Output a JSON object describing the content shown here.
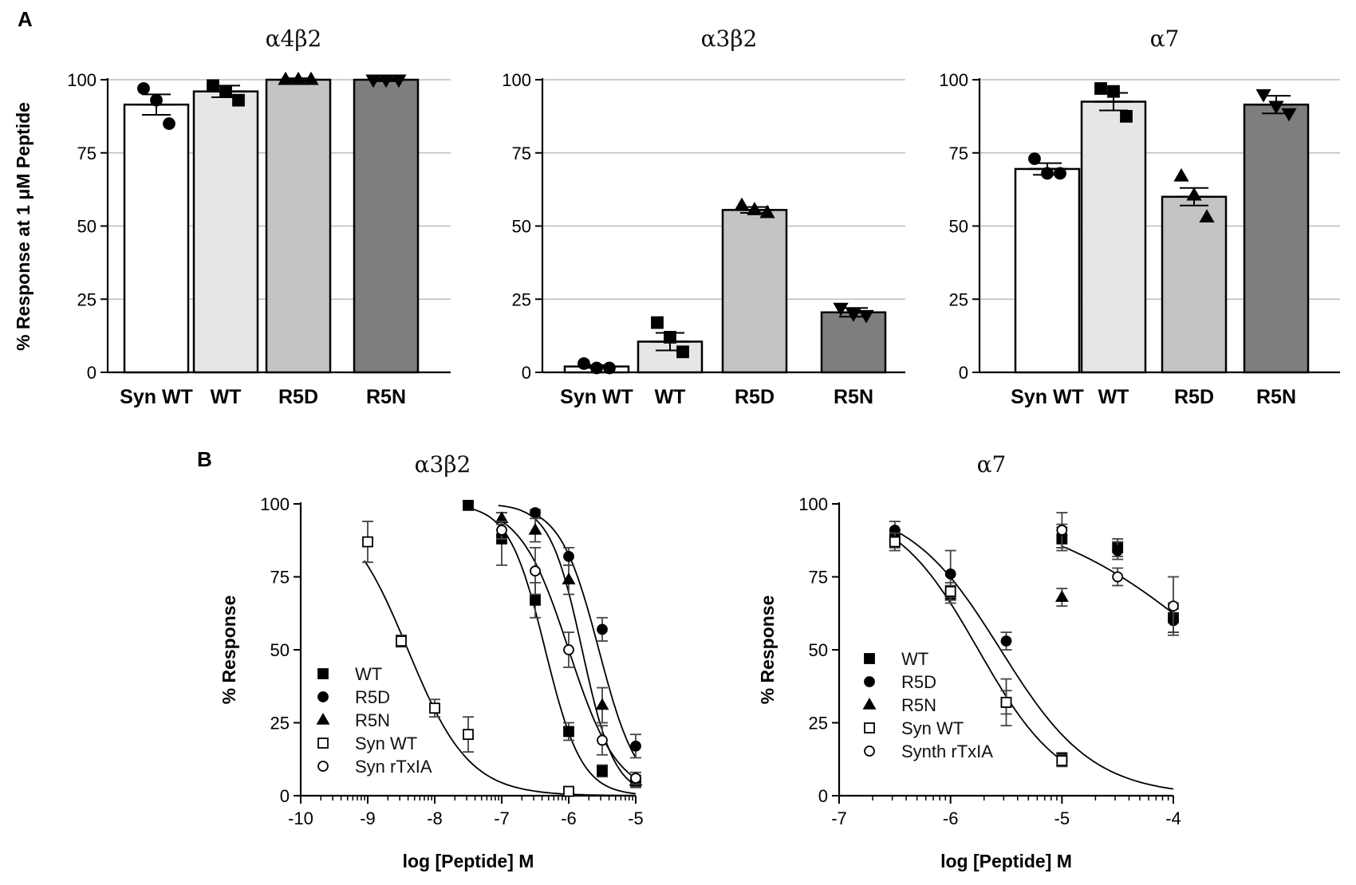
{
  "panel_labels": {
    "a": "A",
    "b": "B"
  },
  "colors": {
    "syn_wt": "#ffffff",
    "wt": "#e6e6e6",
    "r5d": "#c4c4c4",
    "r5n": "#7e7e7e",
    "axis": "#000000",
    "grid": "#bdbdbd"
  },
  "chart_data": [
    {
      "id": "a1",
      "type": "bar",
      "title": "α4β2",
      "ylabel": "% Response at 1 μM Peptide",
      "xlabel": "",
      "ylim": [
        0,
        100
      ],
      "yticks": [
        "0",
        "25",
        "50",
        "75",
        "100"
      ],
      "grid": true,
      "categories": [
        "Syn WT",
        "WT",
        "R5D",
        "R5N"
      ],
      "values": [
        91.5,
        96,
        100,
        100
      ],
      "errors": [
        3.5,
        2,
        0.5,
        0.5
      ],
      "points": [
        [
          97,
          93,
          85
        ],
        [
          98,
          96,
          93
        ],
        [
          100,
          100,
          100
        ],
        [
          100,
          100,
          100
        ]
      ],
      "markers": [
        "circle",
        "square",
        "triangle",
        "triangle-down"
      ]
    },
    {
      "id": "a2",
      "type": "bar",
      "title": "α3β2",
      "ylabel": "",
      "xlabel": "",
      "ylim": [
        0,
        100
      ],
      "yticks": [
        "0",
        "25",
        "50",
        "75",
        "100"
      ],
      "grid": true,
      "categories": [
        "Syn WT",
        "WT",
        "R5D",
        "R5N"
      ],
      "values": [
        2,
        10.5,
        55.5,
        20.5
      ],
      "errors": [
        0.5,
        3,
        1,
        1.5
      ],
      "points": [
        [
          3,
          1.5,
          1.5
        ],
        [
          17,
          12,
          7
        ],
        [
          57,
          55.5,
          54.5
        ],
        [
          22,
          20,
          19.5
        ]
      ],
      "markers": [
        "circle",
        "square",
        "triangle",
        "triangle-down"
      ]
    },
    {
      "id": "a3",
      "type": "bar",
      "title": "α7",
      "ylabel": "",
      "xlabel": "",
      "ylim": [
        0,
        100
      ],
      "yticks": [
        "0",
        "25",
        "50",
        "75",
        "100"
      ],
      "grid": true,
      "categories": [
        "Syn WT",
        "WT",
        "R5D",
        "R5N"
      ],
      "values": [
        69.5,
        92.5,
        60,
        91.5
      ],
      "errors": [
        2,
        3,
        3,
        3
      ],
      "points": [
        [
          73,
          68,
          68
        ],
        [
          97,
          96,
          87.5
        ],
        [
          67,
          60.5,
          53
        ],
        [
          95,
          91,
          88.5
        ]
      ],
      "markers": [
        "circle",
        "square",
        "triangle",
        "triangle-down"
      ]
    },
    {
      "id": "b1",
      "type": "scatter",
      "title": "α3β2",
      "xlabel": "log [Peptide] M",
      "ylabel": "% Response",
      "xlim": [
        -10,
        -5
      ],
      "ylim": [
        0,
        100
      ],
      "xticks": [
        "-10",
        "-9",
        "-8",
        "-7",
        "-6",
        "-5"
      ],
      "yticks": [
        "0",
        "25",
        "50",
        "75",
        "100"
      ],
      "legend_position": "lower-left",
      "series": [
        {
          "name": "WT",
          "marker": "square",
          "x": [
            -7.5,
            -7,
            -6.5,
            -6,
            -5.5,
            -5
          ],
          "y": [
            99.5,
            88,
            67,
            22,
            8.5,
            4.5
          ],
          "err": [
            1,
            9,
            6,
            3,
            2,
            1.5
          ],
          "fit": [
            -6.35,
            1.6
          ]
        },
        {
          "name": "R5D",
          "marker": "circle",
          "x": [
            -6.5,
            -6,
            -5.5,
            -5
          ],
          "y": [
            97,
            82,
            57,
            17
          ],
          "err": [
            1,
            3,
            4,
            4
          ],
          "fit": [
            -5.55,
            1.5
          ]
        },
        {
          "name": "R5N",
          "marker": "triangle",
          "x": [
            -7,
            -6.5,
            -6,
            -5.5,
            -5
          ],
          "y": [
            95,
            91,
            74,
            31,
            5
          ],
          "err": [
            2,
            4,
            5,
            6,
            2
          ],
          "fit": [
            -5.8,
            1.8
          ]
        },
        {
          "name": "Syn WT",
          "marker": "square-open",
          "x": [
            -9,
            -8.5,
            -8,
            -7.5,
            -6
          ],
          "y": [
            87,
            53,
            30,
            21,
            1.5
          ],
          "err": [
            7,
            2,
            3,
            6,
            1
          ],
          "fit": [
            -8.4,
            0.95
          ]
        },
        {
          "name": "Syn rTxIA",
          "marker": "circle-open",
          "x": [
            -7,
            -6.5,
            -6,
            -5.5,
            -5
          ],
          "y": [
            91,
            77,
            50,
            19,
            6
          ],
          "err": [
            3,
            8,
            6,
            5,
            2
          ],
          "fit": [
            -6.0,
            1.2
          ]
        }
      ]
    },
    {
      "id": "b2",
      "type": "scatter",
      "title": "α7",
      "xlabel": "log [Peptide] M",
      "ylabel": "% Response",
      "xlim": [
        -7,
        -4
      ],
      "ylim": [
        0,
        100
      ],
      "xticks": [
        "-7",
        "-6",
        "-5",
        "-4"
      ],
      "yticks": [
        "0",
        "25",
        "50",
        "75",
        "100"
      ],
      "legend_position": "lower-left",
      "series": [
        {
          "name": "WT",
          "marker": "square",
          "x": [
            -6.5,
            -6,
            -5.5,
            -5,
            -5,
            -4.5,
            -4
          ],
          "y": [
            88,
            69,
            32,
            13,
            88,
            85,
            61
          ],
          "err": [
            3,
            3,
            4,
            1.5,
            4,
            3,
            5
          ],
          "fit": null
        },
        {
          "name": "R5D",
          "marker": "circle",
          "x": [
            -6.5,
            -6,
            -5.5,
            -5,
            -5,
            -4.5,
            -4
          ],
          "y": [
            91,
            76,
            53,
            12,
            89,
            84,
            60
          ],
          "err": [
            3,
            8,
            3,
            2,
            4,
            3,
            4
          ],
          "fit": [
            -5.55,
            1.05
          ]
        },
        {
          "name": "R5N",
          "marker": "triangle",
          "x": [
            -5
          ],
          "y": [
            68
          ],
          "err": [
            3
          ],
          "fit": null
        },
        {
          "name": "Syn WT",
          "marker": "square-open",
          "x": [
            -6.5,
            -6,
            -5.5,
            -5
          ],
          "y": [
            87,
            70,
            32,
            12
          ],
          "err": [
            3,
            3,
            8,
            1.5
          ],
          "fit": [
            -5.75,
            1.15
          ]
        },
        {
          "name": "Synth rTxIA",
          "marker": "circle-open",
          "x": [
            -5,
            -4.5,
            -4
          ],
          "y": [
            91,
            75,
            65
          ],
          "err": [
            6,
            3,
            10
          ],
          "fit": [
            -3.6,
            0.55
          ]
        }
      ]
    }
  ]
}
